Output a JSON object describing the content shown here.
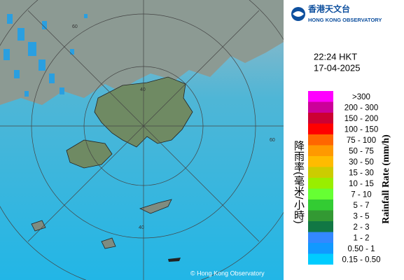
{
  "header": {
    "logo_chinese": "香港天文台",
    "logo_english": "HONG KONG OBSERVATORY"
  },
  "time": "22:24 HKT",
  "date": "17-04-2025",
  "map": {
    "ring_labels": [
      "60",
      "40",
      "60",
      "40"
    ],
    "copyright": "© Hong Kong Observatory"
  },
  "legend": {
    "title_chinese": "降雨率(毫米/小時)",
    "title_english": "Rainfall Rate (mm/h)",
    "items": [
      {
        "label": ">300",
        "color": "#ff00ff"
      },
      {
        "label": "200 - 300",
        "color": "#cc0099"
      },
      {
        "label": "150 - 200",
        "color": "#cc0033"
      },
      {
        "label": "100 - 150",
        "color": "#ff0000"
      },
      {
        "label": "75 - 100",
        "color": "#ff6600"
      },
      {
        "label": "50 - 75",
        "color": "#ff9900"
      },
      {
        "label": "30 - 50",
        "color": "#ffbb00"
      },
      {
        "label": "15 - 30",
        "color": "#cccc00"
      },
      {
        "label": "10 - 15",
        "color": "#99ee00"
      },
      {
        "label": "7 - 10",
        "color": "#66ff33"
      },
      {
        "label": "5 - 7",
        "color": "#33cc33"
      },
      {
        "label": "3 - 5",
        "color": "#339933"
      },
      {
        "label": "2 - 3",
        "color": "#117744"
      },
      {
        "label": "1 - 2",
        "color": "#3388ff"
      },
      {
        "label": "0.50 - 1",
        "color": "#1199ff"
      },
      {
        "label": "0.15 - 0.50",
        "color": "#00ccff"
      }
    ]
  }
}
